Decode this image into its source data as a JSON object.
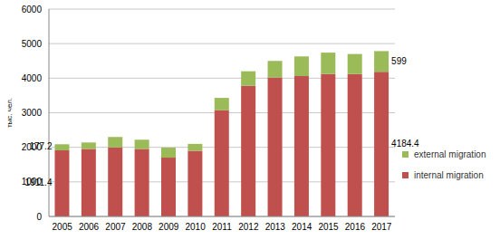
{
  "chart_data": {
    "type": "bar",
    "stacked": true,
    "grid": true,
    "legend": "right",
    "y_label": "тыс. чел.",
    "categories": [
      "2005",
      "2006",
      "2007",
      "2008",
      "2009",
      "2010",
      "2011",
      "2012",
      "2013",
      "2014",
      "2015",
      "2016",
      "2017"
    ],
    "ylim": [
      0,
      6000
    ],
    "yticks": [
      0,
      1000,
      2000,
      3000,
      4000,
      5000,
      6000
    ],
    "series": [
      {
        "name": "internal migration",
        "color": "#C0504D",
        "values": [
          1911.4,
          1950,
          2000,
          1950,
          1700,
          1900,
          3070,
          3780,
          4020,
          4060,
          4120,
          4120,
          4184.4
        ],
        "value_labels": [
          "1911.4",
          null,
          null,
          null,
          null,
          null,
          null,
          null,
          null,
          null,
          null,
          null,
          "4184.4"
        ]
      },
      {
        "name": "external migration",
        "color": "#9BBB59",
        "values": [
          177.2,
          190,
          300,
          270,
          290,
          200,
          360,
          420,
          480,
          570,
          620,
          580,
          599
        ],
        "value_labels": [
          "177.2",
          null,
          null,
          null,
          null,
          null,
          null,
          null,
          null,
          null,
          null,
          null,
          "599"
        ]
      }
    ]
  }
}
